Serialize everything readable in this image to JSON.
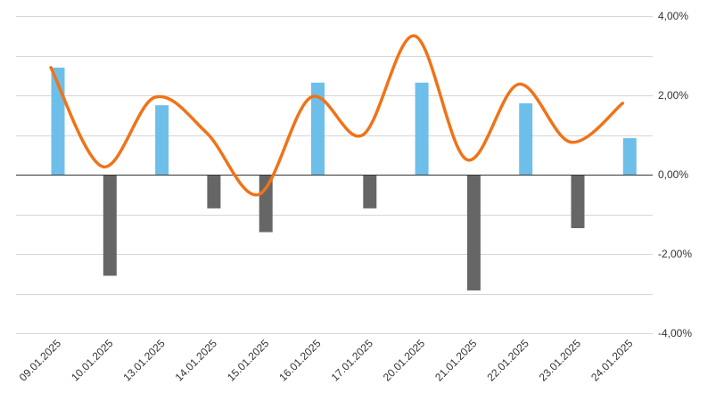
{
  "chart_data": {
    "type": "bar",
    "categories": [
      "09.01.2025",
      "10.01.2025",
      "13.01.2025",
      "14.01.2025",
      "15.01.2025",
      "16.01.2025",
      "17.01.2025",
      "20.01.2025",
      "21.01.2025",
      "22.01.2025",
      "23.01.2025",
      "24.01.2025"
    ],
    "series": [
      {
        "type": "bar",
        "values": [
          2.7,
          -2.55,
          1.75,
          -0.85,
          -1.45,
          2.32,
          -0.85,
          2.32,
          -2.92,
          1.8,
          -1.35,
          0.92
        ]
      },
      {
        "type": "line",
        "smooth": true,
        "values": [
          2.7,
          0.2,
          1.95,
          1.05,
          -0.5,
          1.95,
          1.0,
          3.5,
          0.38,
          2.28,
          0.82,
          1.8
        ]
      }
    ],
    "bar_colors": {
      "positive": "#6dbfea",
      "negative": "#666666"
    },
    "line_color": "#f07318",
    "y_ticks": [
      "4,00%",
      "2,00%",
      "0,00%",
      "-2,00%",
      "-4,00%"
    ],
    "ylim": [
      -4,
      4
    ],
    "y_axis_position": "right",
    "grid": true,
    "title": "",
    "xlabel": "",
    "ylabel": ""
  }
}
